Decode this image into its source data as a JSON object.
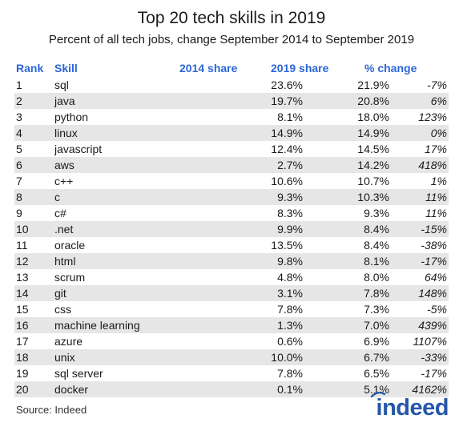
{
  "chart_data": {
    "type": "table",
    "title": "Top 20 tech skills in 2019",
    "subtitle": "Percent of all tech jobs, change September 2014 to September 2019",
    "columns": [
      "Rank",
      "Skill",
      "2014 share",
      "2019 share",
      "% change"
    ],
    "rows": [
      [
        "1",
        "sql",
        "23.6%",
        "21.9%",
        "-7%"
      ],
      [
        "2",
        "java",
        "19.7%",
        "20.8%",
        "6%"
      ],
      [
        "3",
        "python",
        "8.1%",
        "18.0%",
        "123%"
      ],
      [
        "4",
        "linux",
        "14.9%",
        "14.9%",
        "0%"
      ],
      [
        "5",
        "javascript",
        "12.4%",
        "14.5%",
        "17%"
      ],
      [
        "6",
        "aws",
        "2.7%",
        "14.2%",
        "418%"
      ],
      [
        "7",
        "c++",
        "10.6%",
        "10.7%",
        "1%"
      ],
      [
        "8",
        "c",
        "9.3%",
        "10.3%",
        "11%"
      ],
      [
        "9",
        "c#",
        "8.3%",
        "9.3%",
        "11%"
      ],
      [
        "10",
        ".net",
        "9.9%",
        "8.4%",
        "-15%"
      ],
      [
        "11",
        "oracle",
        "13.5%",
        "8.4%",
        "-38%"
      ],
      [
        "12",
        "html",
        "9.8%",
        "8.1%",
        "-17%"
      ],
      [
        "13",
        "scrum",
        "4.8%",
        "8.0%",
        "64%"
      ],
      [
        "14",
        "git",
        "3.1%",
        "7.8%",
        "148%"
      ],
      [
        "15",
        "css",
        "7.8%",
        "7.3%",
        "-5%"
      ],
      [
        "16",
        "machine learning",
        "1.3%",
        "7.0%",
        "439%"
      ],
      [
        "17",
        "azure",
        "0.6%",
        "6.9%",
        "1107%"
      ],
      [
        "18",
        "unix",
        "10.0%",
        "6.7%",
        "-33%"
      ],
      [
        "19",
        "sql server",
        "7.8%",
        "6.5%",
        "-17%"
      ],
      [
        "20",
        "docker",
        "0.1%",
        "5.1%",
        "4162%"
      ]
    ]
  },
  "source": "Source: Indeed",
  "logo_text": "indeed",
  "colors": {
    "header_text": "#2b66d9",
    "row_shade": "#e6e6e6",
    "logo": "#2557a7"
  }
}
